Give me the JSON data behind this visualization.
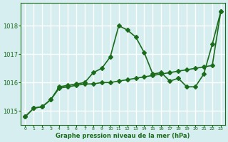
{
  "x": [
    0,
    1,
    2,
    3,
    4,
    5,
    6,
    7,
    8,
    9,
    10,
    11,
    12,
    13,
    14,
    15,
    16,
    17,
    18,
    19,
    20,
    21,
    22,
    23
  ],
  "y_line1": [
    1014.8,
    1015.1,
    1015.15,
    1015.4,
    1015.8,
    1015.85,
    1015.9,
    1015.95,
    1015.95,
    1016.0,
    1016.0,
    1016.05,
    1016.1,
    1016.15,
    1016.2,
    1016.25,
    1016.3,
    1016.35,
    1016.4,
    1016.45,
    1016.5,
    1016.55,
    1016.6,
    1018.5
  ],
  "y_line2": [
    1014.8,
    1015.1,
    1015.15,
    1015.4,
    1015.85,
    1015.9,
    1015.95,
    1016.0,
    1016.35,
    1016.5,
    1016.9,
    1018.0,
    1017.85,
    1017.6,
    1017.05,
    1016.3,
    1016.35,
    1016.05,
    1016.15,
    1015.85,
    1015.85,
    1016.3,
    1017.35,
    1018.5
  ],
  "bg_color": "#d6eef0",
  "grid_color": "#ffffff",
  "line_color": "#1a6b1a",
  "xlabel": "Graphe pression niveau de la mer (hPa)",
  "yticks": [
    1015,
    1016,
    1017,
    1018
  ],
  "xlim": [
    -0.5,
    23.5
  ],
  "ylim": [
    1014.5,
    1018.8
  ],
  "marker": "D",
  "markersize": 3,
  "linewidth": 1.2
}
